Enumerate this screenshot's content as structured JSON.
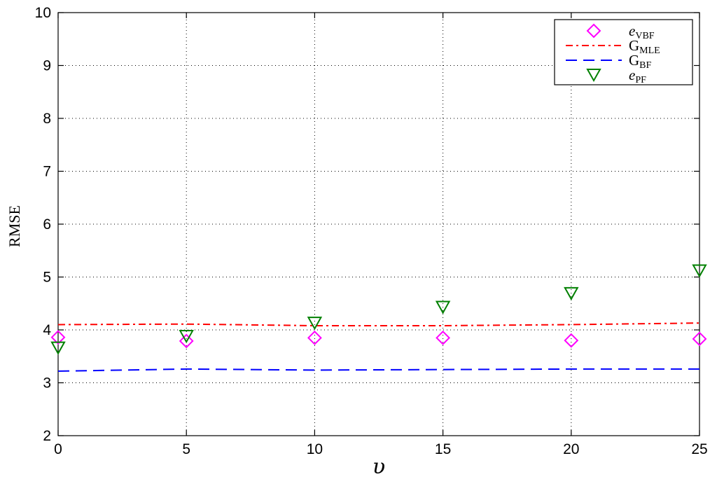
{
  "chart_data": {
    "type": "line",
    "title": "",
    "xlabel": "υ",
    "ylabel": "RMSE",
    "xlim": [
      0,
      25
    ],
    "ylim": [
      2,
      10
    ],
    "xticks": [
      0,
      5,
      10,
      15,
      20,
      25
    ],
    "yticks": [
      2,
      3,
      4,
      5,
      6,
      7,
      8,
      9,
      10
    ],
    "grid": true,
    "legend_position": "top-right",
    "series": [
      {
        "name": "e_VBF",
        "label_main": "e",
        "label_sub": "VBF",
        "style": "markers-diamond",
        "color": "#ff00ff",
        "x": [
          0,
          5,
          10,
          15,
          20,
          25
        ],
        "y": [
          3.86,
          3.79,
          3.85,
          3.85,
          3.8,
          3.83
        ]
      },
      {
        "name": "G_MLE",
        "label_main": "G",
        "label_sub": "MLE",
        "style": "line-dashdot",
        "color": "#ff0000",
        "x": [
          0,
          5,
          10,
          15,
          20,
          25
        ],
        "y": [
          4.1,
          4.11,
          4.08,
          4.08,
          4.1,
          4.13
        ]
      },
      {
        "name": "G_BF",
        "label_main": "G",
        "label_sub": "BF",
        "style": "line-dashed",
        "color": "#0000ff",
        "x": [
          0,
          5,
          10,
          15,
          20,
          25
        ],
        "y": [
          3.22,
          3.26,
          3.24,
          3.25,
          3.26,
          3.26
        ]
      },
      {
        "name": "e_PF",
        "label_main": "e",
        "label_sub": "PF",
        "style": "markers-triangle-down",
        "color": "#008000",
        "x": [
          0,
          5,
          10,
          15,
          20,
          25
        ],
        "y": [
          3.66,
          3.88,
          4.13,
          4.43,
          4.69,
          5.12
        ]
      }
    ]
  }
}
